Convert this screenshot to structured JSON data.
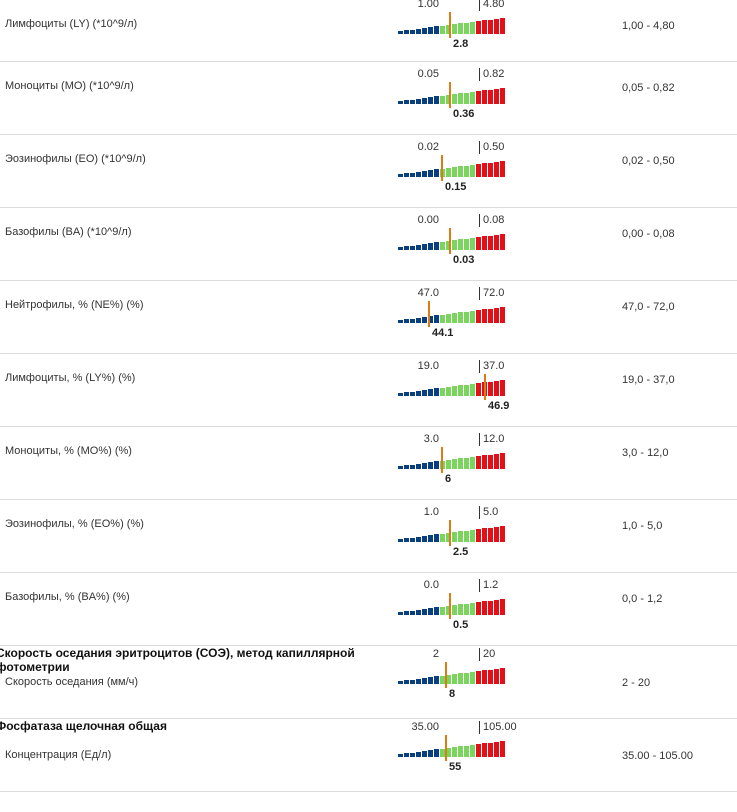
{
  "colors": {
    "low": "#0a3f7f",
    "normal": "#7ad45e",
    "high": "#e21019",
    "marker": "#e07b12"
  },
  "rows": [
    {
      "name": "Лимфоциты (LY) (*10^9/л)",
      "low": "1.00",
      "high": "4.80",
      "value": "2.8",
      "ref": "1,00 - 4,80",
      "pos": 0.475
    },
    {
      "name": "Моноциты (MO) (*10^9/л)",
      "low": "0.05",
      "high": "0.82",
      "value": "0.36",
      "ref": "0,05 - 0,82",
      "pos": 0.476
    },
    {
      "name": "Эозинофилы (EO) (*10^9/л)",
      "low": "0.02",
      "high": "0.50",
      "value": "0.15",
      "ref": "0,02 - 0,50",
      "pos": 0.395
    },
    {
      "name": "Базофилы (BA) (*10^9/л)",
      "low": "0.00",
      "high": "0.08",
      "value": "0.03",
      "ref": "0,00 - 0,08",
      "pos": 0.475
    },
    {
      "name": "Нейтрофилы, % (NE%) (%)",
      "low": "47.0",
      "high": "72.0",
      "value": "44.1",
      "ref": "47,0 - 72,0",
      "pos": 0.282
    },
    {
      "name": "Лимфоциты, % (LY%) (%)",
      "low": "19.0",
      "high": "37.0",
      "value": "46.9",
      "ref": "19,0 - 37,0",
      "pos": 0.792
    },
    {
      "name": "Моноциты, % (MO%) (%)",
      "low": "3.0",
      "high": "12.0",
      "value": "6",
      "ref": "3,0 - 12,0",
      "pos": 0.395
    },
    {
      "name": "Эозинофилы, % (EO%) (%)",
      "low": "1.0",
      "high": "5.0",
      "value": "2.5",
      "ref": "1,0 - 5,0",
      "pos": 0.475
    },
    {
      "name": "Базофилы, % (BA%) (%)",
      "low": "0.0",
      "high": "1.2",
      "value": "0.5",
      "ref": "0,0 - 1,2",
      "pos": 0.475
    },
    {
      "group": "Скорость оседания эритроцитов (СОЭ), метод капиллярной фотометрии",
      "name": "Скорость оседания (мм/ч)",
      "low": "2",
      "high": "20",
      "value": "8",
      "ref": "2 - 20",
      "pos": 0.435
    },
    {
      "group": "Фосфатаза щелочная общая",
      "name": "Концентрация (Ед/л)",
      "low": "35.00",
      "high": "105.00",
      "value": "55",
      "ref": "35.00 - 105.00",
      "pos": 0.435
    }
  ]
}
